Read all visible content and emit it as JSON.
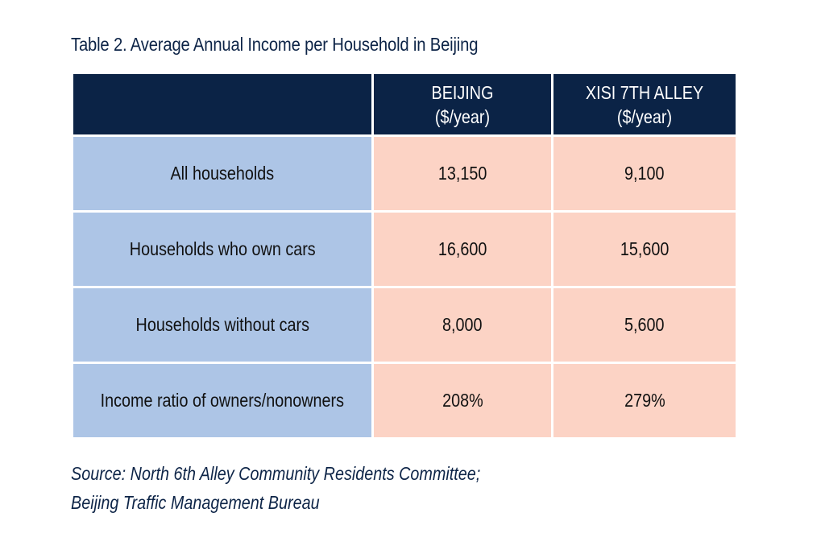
{
  "title": "Table 2. Average Annual Income per Household in Beijing",
  "table": {
    "header": {
      "corner": "",
      "col1_line1": "BEIJING",
      "col1_line2": "($/year)",
      "col2_line1": "XISI 7TH ALLEY",
      "col2_line2": "($/year)"
    },
    "rows": [
      {
        "label": "All households",
        "beijing": "13,150",
        "xisi": "9,100"
      },
      {
        "label": "Households who own cars",
        "beijing": "16,600",
        "xisi": "15,600"
      },
      {
        "label": "Households without cars",
        "beijing": "8,000",
        "xisi": "5,600"
      },
      {
        "label": "Income ratio of owners/nonowners",
        "beijing": "208%",
        "xisi": "279%"
      }
    ]
  },
  "source": {
    "line1": "Source: North 6th Alley Community Residents Committee;",
    "line2": "Beijing Traffic Management Bureau"
  },
  "colors": {
    "header_bg": "#0b2346",
    "label_bg": "#adc5e6",
    "value_bg": "#fcd3c5",
    "text_dark": "#0d2447"
  }
}
